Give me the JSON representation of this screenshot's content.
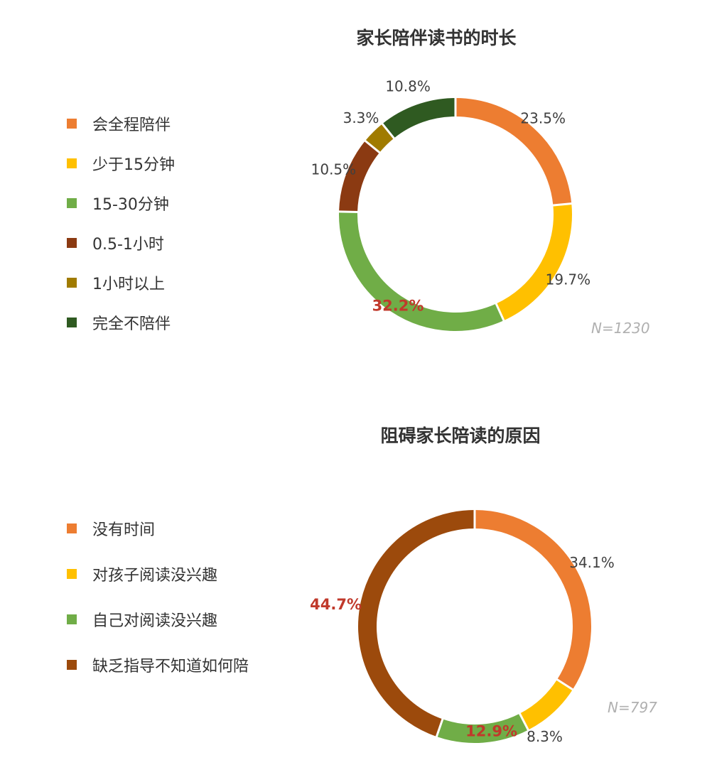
{
  "chart_data": [
    {
      "type": "pie",
      "title": "家长陪伴读书的时长",
      "categories": [
        "会全程陪伴",
        "少于15分钟",
        "15-30分钟",
        "0.5-1小时",
        "1小时以上",
        "完全不陪伴"
      ],
      "values": [
        23.5,
        19.7,
        32.2,
        10.5,
        3.3,
        10.8
      ],
      "labels": [
        "23.5%",
        "19.7%",
        "32.2%",
        "10.5%",
        "3.3%",
        "10.8%"
      ],
      "highlight_index": 2,
      "colors": [
        "#ED7D31",
        "#FFC000",
        "#70AD47",
        "#8B3A12",
        "#A07B00",
        "#2F5A21"
      ],
      "sample_size": "N=1230",
      "legend_position": "left",
      "grid": false
    },
    {
      "type": "pie",
      "title": "阻碍家长陪读的原因",
      "categories": [
        "没有时间",
        "对孩子阅读没兴趣",
        "自己对阅读没兴趣",
        "缺乏指导不知道如何陪"
      ],
      "values": [
        34.1,
        8.3,
        12.9,
        44.7
      ],
      "labels": [
        "34.1%",
        "8.3%",
        "12.9%",
        "44.7%"
      ],
      "highlight_index": [
        2,
        3
      ],
      "colors": [
        "#ED7D31",
        "#FFC000",
        "#70AD47",
        "#9C4A0C"
      ],
      "sample_size": "N=797",
      "legend_position": "left",
      "grid": false
    }
  ]
}
